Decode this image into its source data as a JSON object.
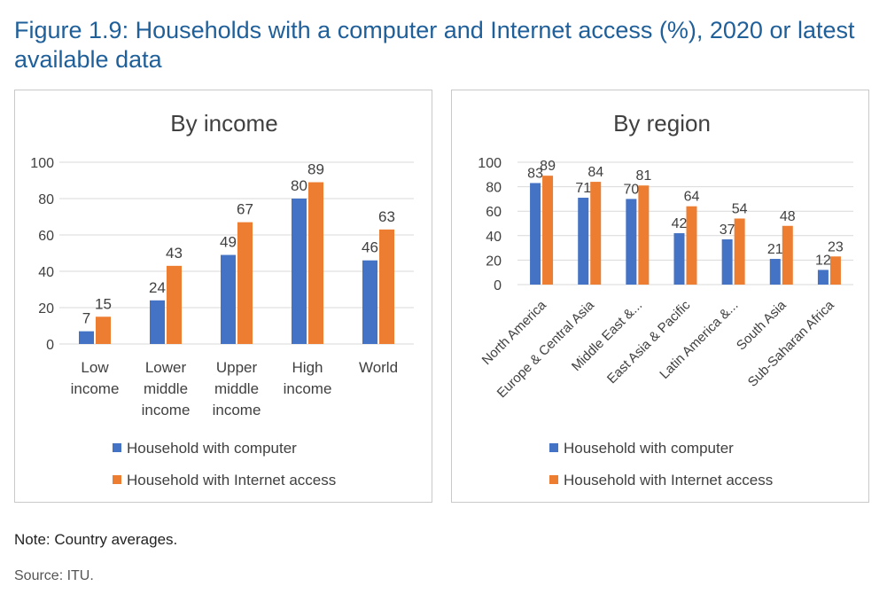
{
  "figure": {
    "title": "Figure 1.9: Households with a computer and Internet access (%), 2020 or latest available data",
    "note": "Note: Country averages.",
    "source": "Source: ITU."
  },
  "colors": {
    "computer": "#4472c4",
    "internet": "#ed7d31",
    "gridline": "#d9d9d9",
    "text": "#404040"
  },
  "chart_data": [
    {
      "type": "bar",
      "title": "By income",
      "categories": [
        [
          "Low",
          "income"
        ],
        [
          "Lower",
          "middle",
          "income"
        ],
        [
          "Upper",
          "middle",
          "income"
        ],
        [
          "High",
          "income"
        ],
        [
          "World"
        ]
      ],
      "series": [
        {
          "name": "Household with computer",
          "values": [
            7,
            24,
            49,
            80,
            46
          ]
        },
        {
          "name": "Household with Internet access",
          "values": [
            15,
            43,
            67,
            89,
            63
          ]
        }
      ],
      "yticks": [
        0,
        20,
        40,
        60,
        80,
        100
      ],
      "ylim": [
        0,
        100
      ],
      "xlabel": "",
      "ylabel": "",
      "legend_position": "bottom",
      "grid": true
    },
    {
      "type": "bar",
      "title": "By region",
      "categories": [
        "North America",
        "Europe & Central Asia",
        "Middle East &...",
        "East Asia & Pacific",
        "Latin America &...",
        "South Asia",
        "Sub-Saharan Africa"
      ],
      "series": [
        {
          "name": "Household with computer",
          "values": [
            83,
            71,
            70,
            42,
            37,
            21,
            12
          ]
        },
        {
          "name": "Household with Internet access",
          "values": [
            89,
            84,
            81,
            64,
            54,
            48,
            23
          ]
        }
      ],
      "yticks": [
        0,
        20,
        40,
        60,
        80,
        100
      ],
      "ylim": [
        0,
        100
      ],
      "xlabel": "",
      "ylabel": "",
      "legend_position": "bottom",
      "grid": true
    }
  ]
}
